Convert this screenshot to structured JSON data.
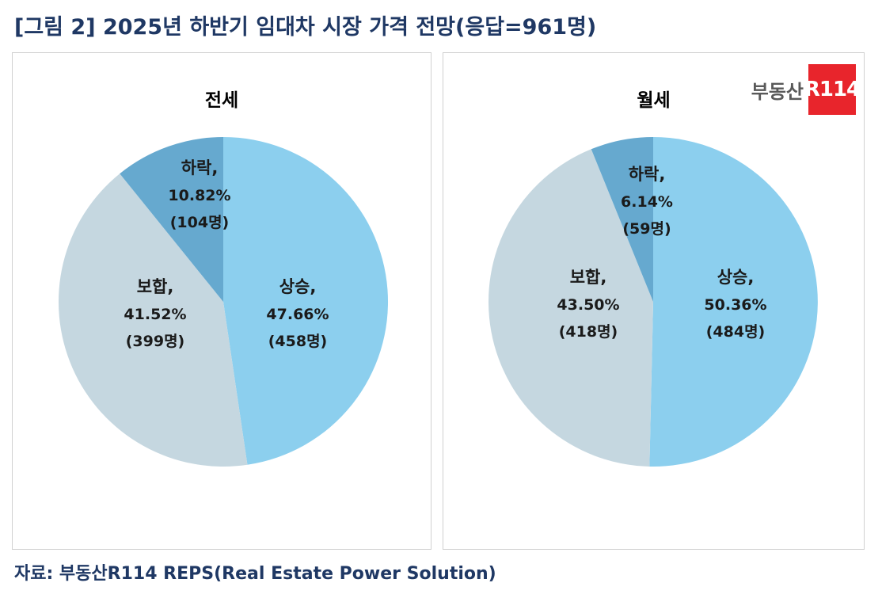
{
  "title": "[그림 2] 2025년 하반기 임대차 시장 가격 전망(응답=961명)",
  "source": "자료: 부동산R114 REPS(Real Estate Power Solution)",
  "logo": {
    "text": "부동산",
    "badge": "R114"
  },
  "chart_data": [
    {
      "type": "pie",
      "title": "전세",
      "slices": [
        {
          "label": "상승,",
          "percent_label": "47.66%",
          "count_label": "(458명)",
          "value": 47.66,
          "color": "#8ccfee"
        },
        {
          "label": "보합,",
          "percent_label": "41.52%",
          "count_label": "(399명)",
          "value": 41.52,
          "color": "#c5d7e0"
        },
        {
          "label": "하락,",
          "percent_label": "10.82%",
          "count_label": "(104명)",
          "value": 10.82,
          "color": "#66a9cf"
        }
      ]
    },
    {
      "type": "pie",
      "title": "월세",
      "slices": [
        {
          "label": "상승,",
          "percent_label": "50.36%",
          "count_label": "(484명)",
          "value": 50.36,
          "color": "#8ccfee"
        },
        {
          "label": "보합,",
          "percent_label": "43.50%",
          "count_label": "(418명)",
          "value": 43.5,
          "color": "#c5d7e0"
        },
        {
          "label": "하락,",
          "percent_label": "6.14%",
          "count_label": "(59명)",
          "value": 6.14,
          "color": "#66a9cf"
        }
      ]
    }
  ]
}
